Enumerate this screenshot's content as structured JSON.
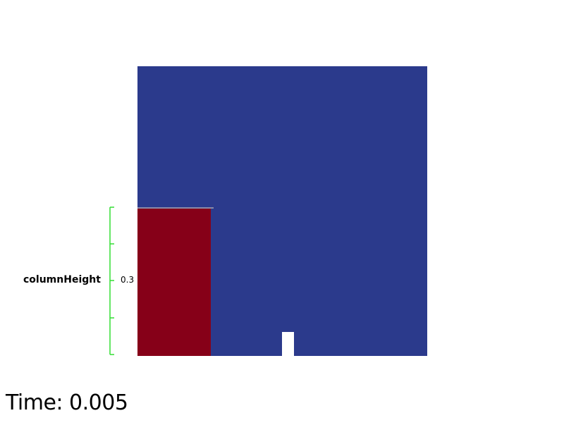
{
  "colors": {
    "domain": "#2b3a8c",
    "water_column": "#860018",
    "ruler": "#33dd33",
    "background": "#ffffff",
    "text": "#000000"
  },
  "ruler": {
    "label": "columnHeight",
    "value": "0.3"
  },
  "time": {
    "label": "Time: 0.005"
  }
}
